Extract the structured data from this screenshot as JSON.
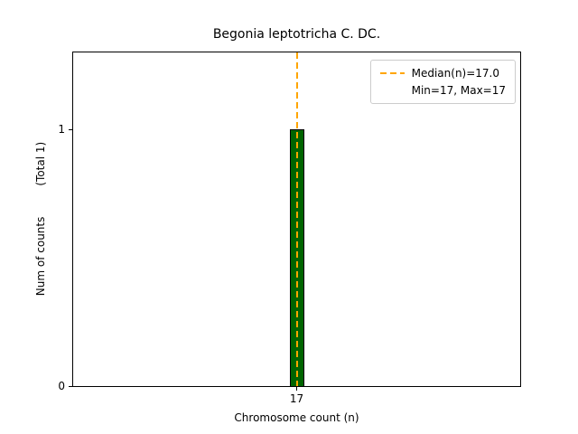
{
  "figure": {
    "title": "Begonia leptotricha C. DC."
  },
  "axes": {
    "xlabel": "Chromosome count (n)",
    "ylabel": "Num of counts",
    "ylabel_note": "(Total 1)"
  },
  "legend": {
    "entries": [
      {
        "label": "Median(n)=17.0",
        "marker": "dashed-line",
        "color": "#FFA500"
      },
      {
        "label": "Min=17, Max=17",
        "marker": "none"
      }
    ]
  },
  "colors": {
    "bar_fill": "#006400",
    "bar_edge": "#000000",
    "median_line": "#FFA500",
    "axis": "#000000",
    "legend_border": "#CCCCCC",
    "background": "#FFFFFF"
  },
  "chart_data": {
    "type": "bar",
    "title": "Begonia leptotricha C. DC.",
    "xlabel": "Chromosome count (n)",
    "ylabel": "Num of counts (Total 1)",
    "categories": [
      17
    ],
    "values": [
      1
    ],
    "series": [
      {
        "name": "Num of counts",
        "values": [
          1
        ]
      }
    ],
    "xticks": [
      17
    ],
    "yticks": [
      0,
      1
    ],
    "ylim": [
      0,
      1.3
    ],
    "annotations": {
      "median": 17.0,
      "min": 17,
      "max": 17,
      "total_counts": 1,
      "median_line_style": "dashed",
      "median_line_color": "#FFA500"
    },
    "legend_position": "upper right",
    "grid": false
  }
}
